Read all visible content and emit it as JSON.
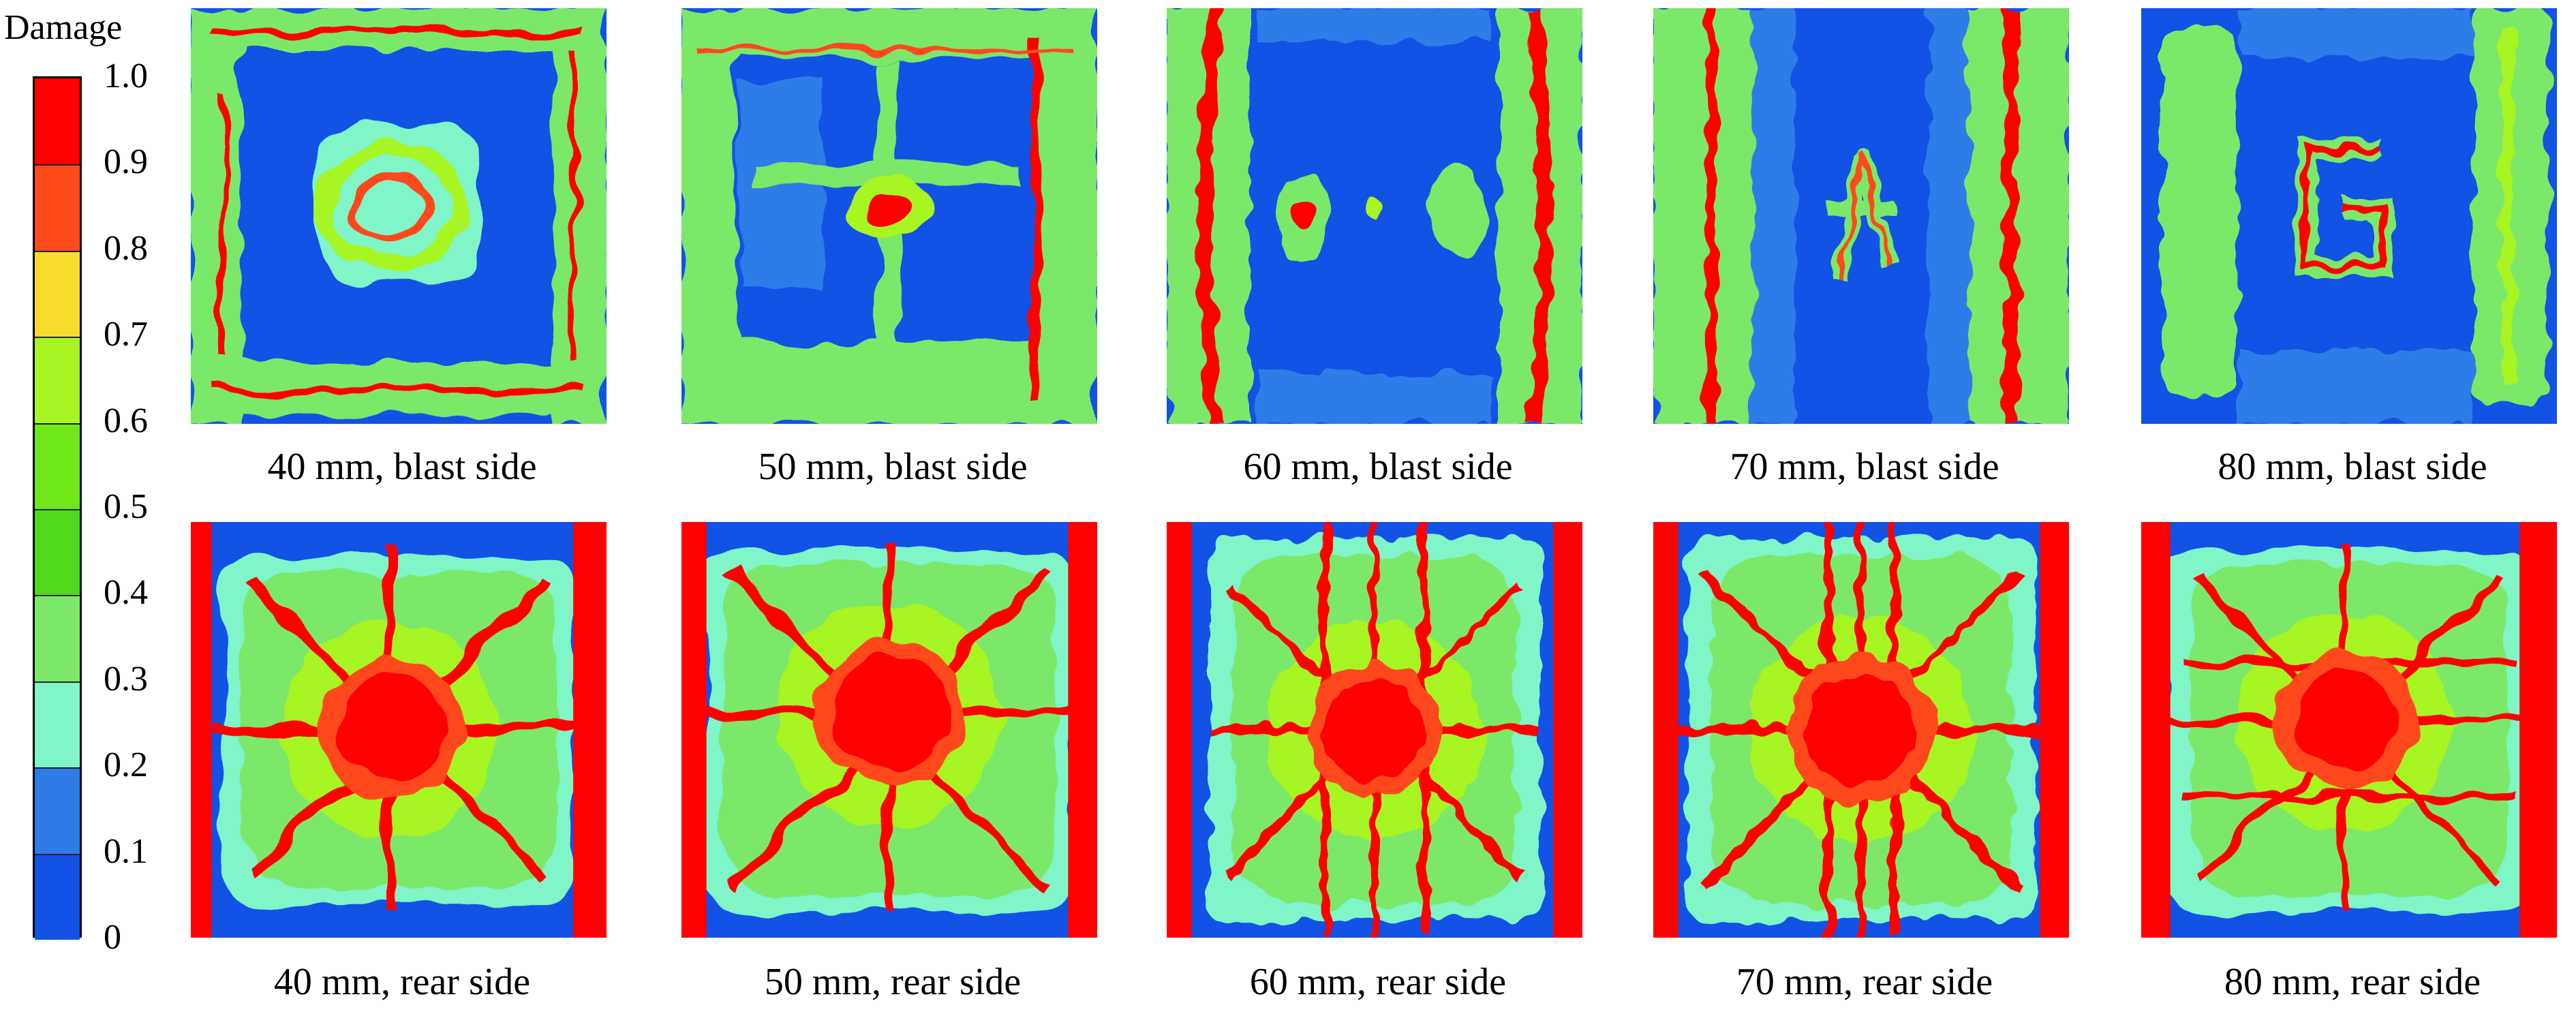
{
  "legend": {
    "title": "Damage",
    "ticks": [
      "1.0",
      "0.9",
      "0.8",
      "0.7",
      "0.6",
      "0.5",
      "0.4",
      "0.3",
      "0.2",
      "0.1",
      "0"
    ],
    "colors": [
      "#ff0000",
      "#ff4a1a",
      "#f5dc2b",
      "#a7f522",
      "#6ee818",
      "#4fda1c",
      "#7ce86a",
      "#7ff5c8",
      "#2f7be8",
      "#1252e4"
    ]
  },
  "panels": {
    "blast": [
      {
        "caption": "40 mm, blast side"
      },
      {
        "caption": "50 mm, blast side"
      },
      {
        "caption": "60 mm, blast side"
      },
      {
        "caption": "70 mm, blast side"
      },
      {
        "caption": "80 mm, blast side"
      }
    ],
    "rear": [
      {
        "caption": "40 mm, rear side"
      },
      {
        "caption": "50 mm, rear side"
      },
      {
        "caption": "60 mm, rear side"
      },
      {
        "caption": "70 mm, rear side"
      },
      {
        "caption": "80 mm, rear side"
      }
    ]
  }
}
